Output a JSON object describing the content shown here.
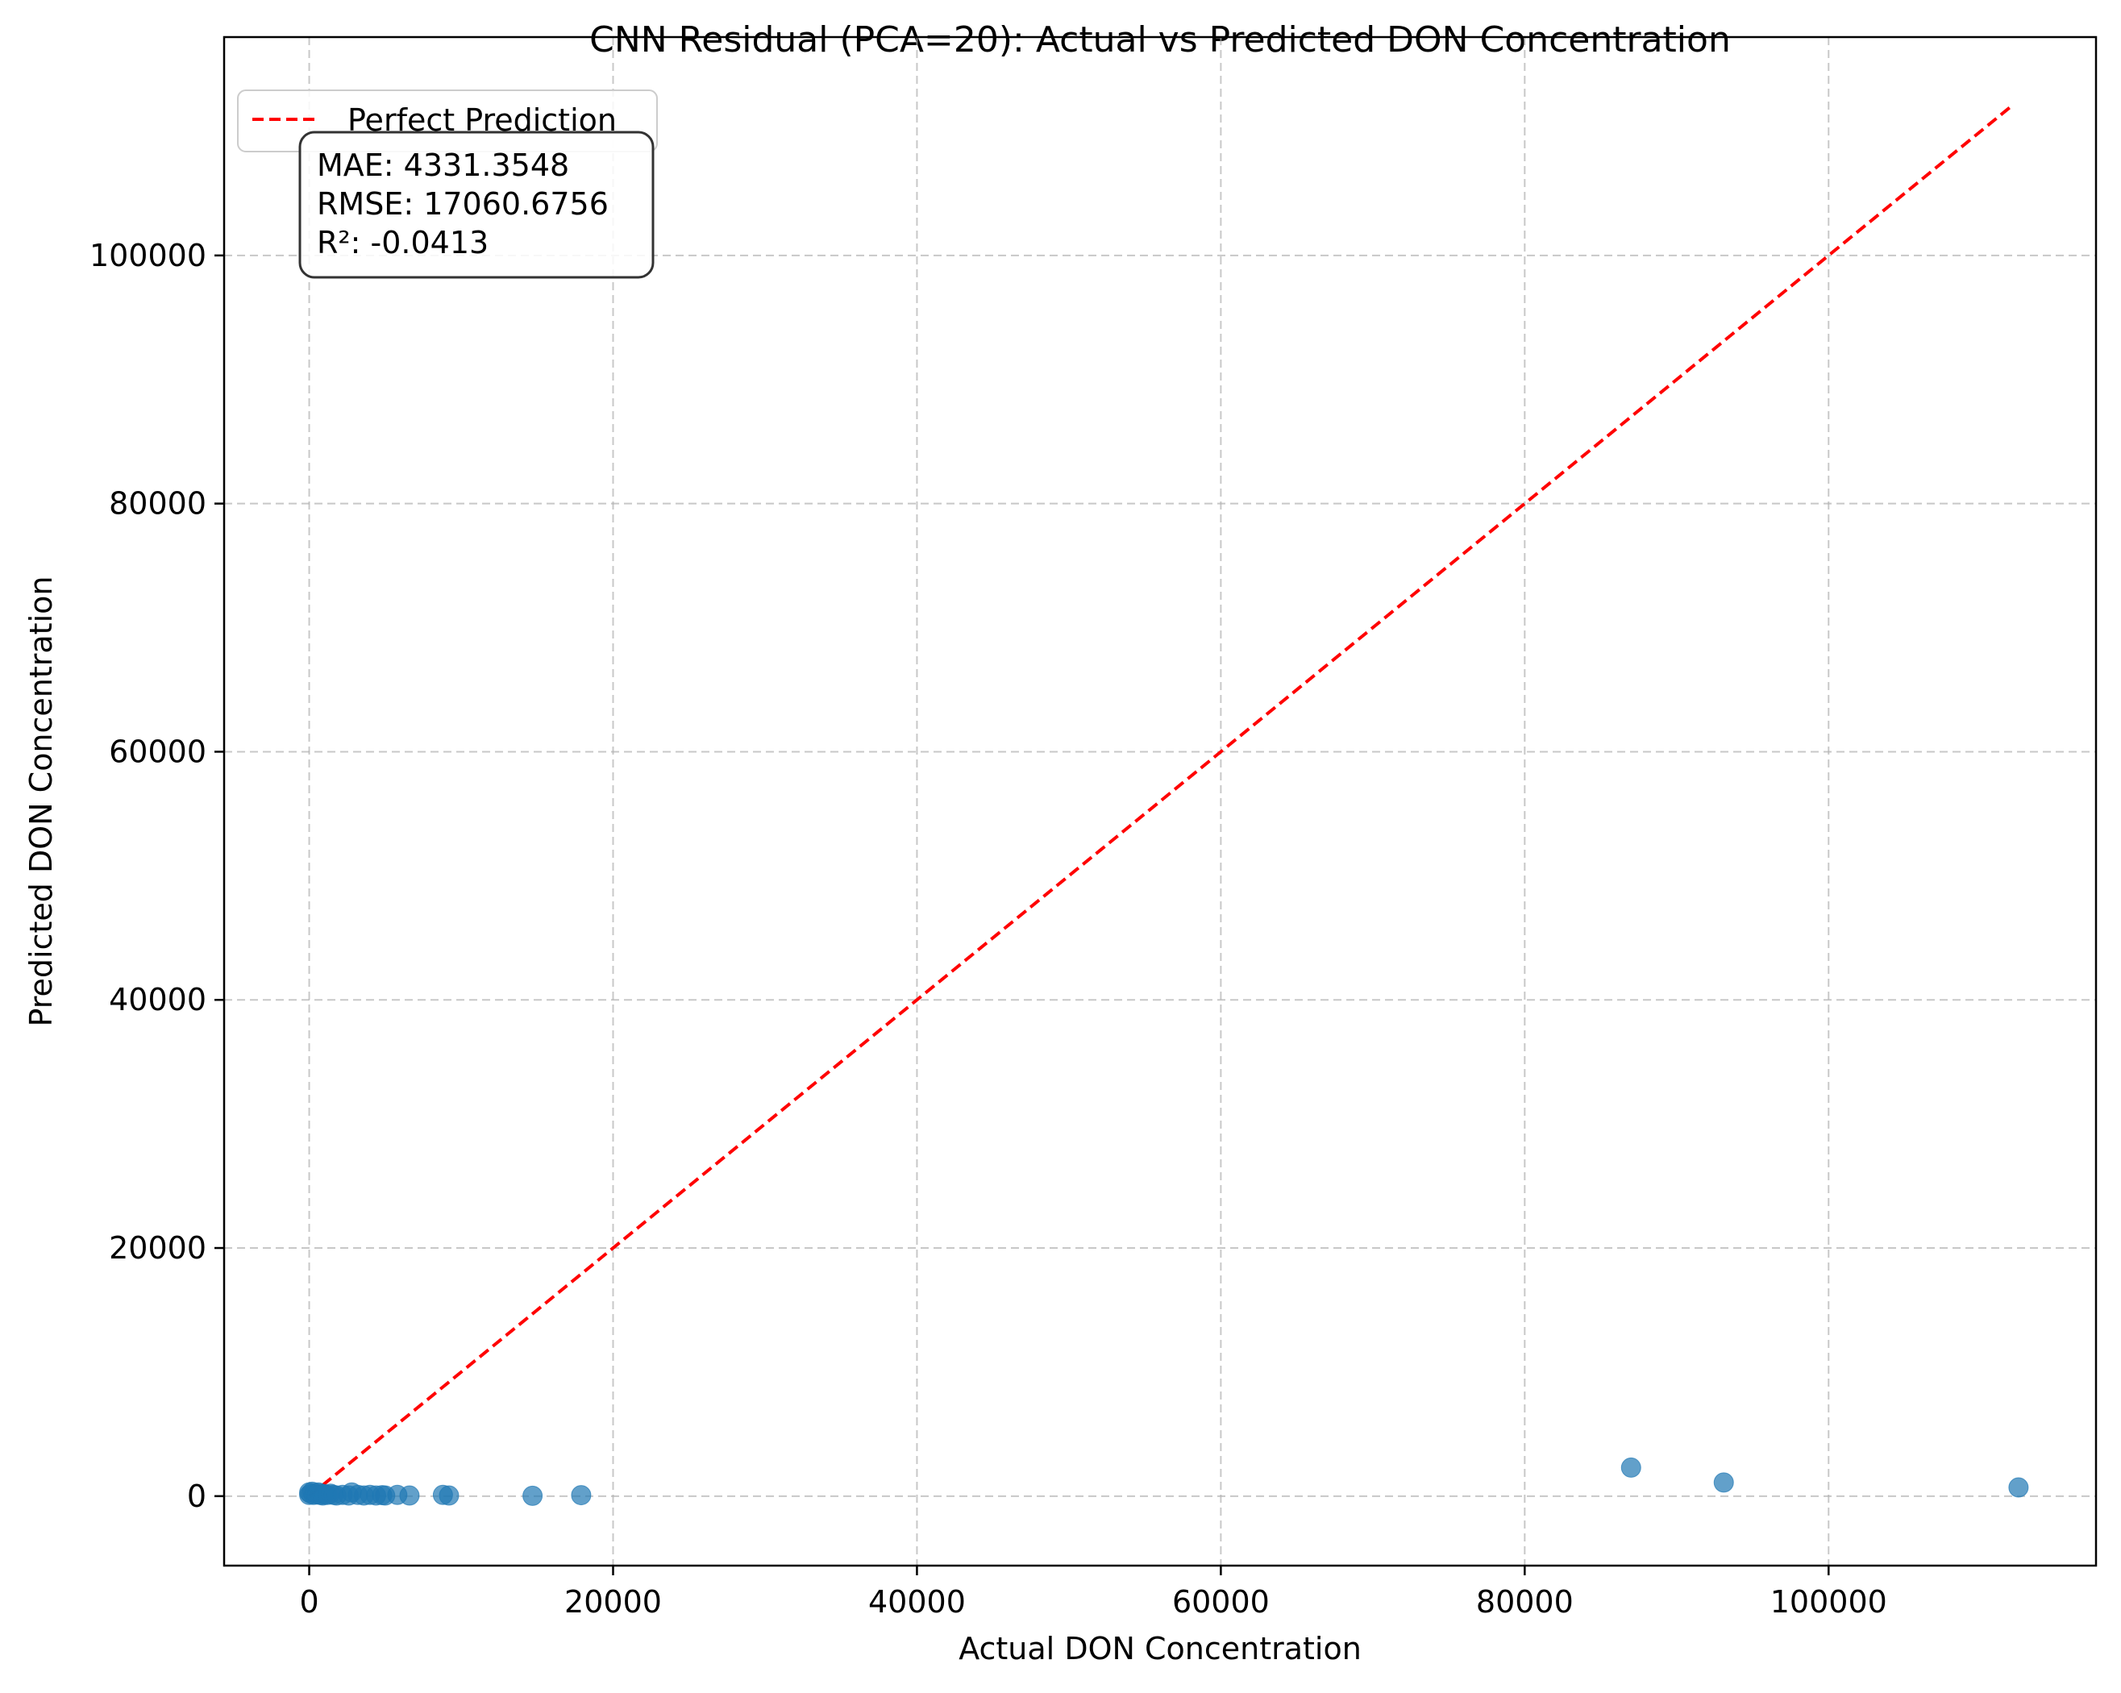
{
  "chart_data": {
    "type": "scatter",
    "title": "CNN Residual (PCA=20): Actual vs Predicted DON Concentration",
    "xlabel": "Actual DON Concentration",
    "ylabel": "Predicted DON Concentration",
    "xlim": [
      -5600,
      117600
    ],
    "ylim": [
      -5600,
      117600
    ],
    "xticks": [
      0,
      20000,
      40000,
      60000,
      80000,
      100000
    ],
    "yticks": [
      0,
      20000,
      40000,
      60000,
      80000,
      100000
    ],
    "xtick_labels": [
      "0",
      "20000",
      "40000",
      "60000",
      "80000",
      "100000"
    ],
    "ytick_labels": [
      "0",
      "20000",
      "40000",
      "60000",
      "80000",
      "100000"
    ],
    "grid": true,
    "legend": {
      "placement": "top-left",
      "entries": [
        {
          "label": "Perfect Prediction",
          "style": "dashed",
          "color": "#ff0000"
        }
      ]
    },
    "reference_line": {
      "name": "Perfect Prediction",
      "x": [
        0,
        112000
      ],
      "y": [
        0,
        112000
      ],
      "color": "#ff0000"
    },
    "metrics": [
      "MAE: 4331.3548",
      "RMSE: 17060.6756",
      "R²: -0.0413"
    ],
    "series": [
      {
        "color": "#1f77b4",
        "points": [
          [
            0,
            100
          ],
          [
            0,
            300
          ],
          [
            100,
            200
          ],
          [
            200,
            350
          ],
          [
            300,
            100
          ],
          [
            400,
            250
          ],
          [
            500,
            150
          ],
          [
            600,
            300
          ],
          [
            700,
            100
          ],
          [
            800,
            200
          ],
          [
            900,
            50
          ],
          [
            1000,
            150
          ],
          [
            1200,
            100
          ],
          [
            1400,
            200
          ],
          [
            1600,
            100
          ],
          [
            1800,
            50
          ],
          [
            2200,
            100
          ],
          [
            2600,
            50
          ],
          [
            2800,
            300
          ],
          [
            3200,
            100
          ],
          [
            3600,
            50
          ],
          [
            4000,
            100
          ],
          [
            4400,
            50
          ],
          [
            4800,
            80
          ],
          [
            5000,
            50
          ],
          [
            5800,
            100
          ],
          [
            6600,
            50
          ],
          [
            8800,
            100
          ],
          [
            9200,
            50
          ],
          [
            14700,
            30
          ],
          [
            17900,
            80
          ],
          [
            87000,
            2300
          ],
          [
            93100,
            1100
          ],
          [
            112500,
            700
          ]
        ]
      }
    ]
  },
  "colors": {
    "points": "#1f77b4",
    "reference": "#ff0000",
    "grid": "#b0b0b0"
  }
}
